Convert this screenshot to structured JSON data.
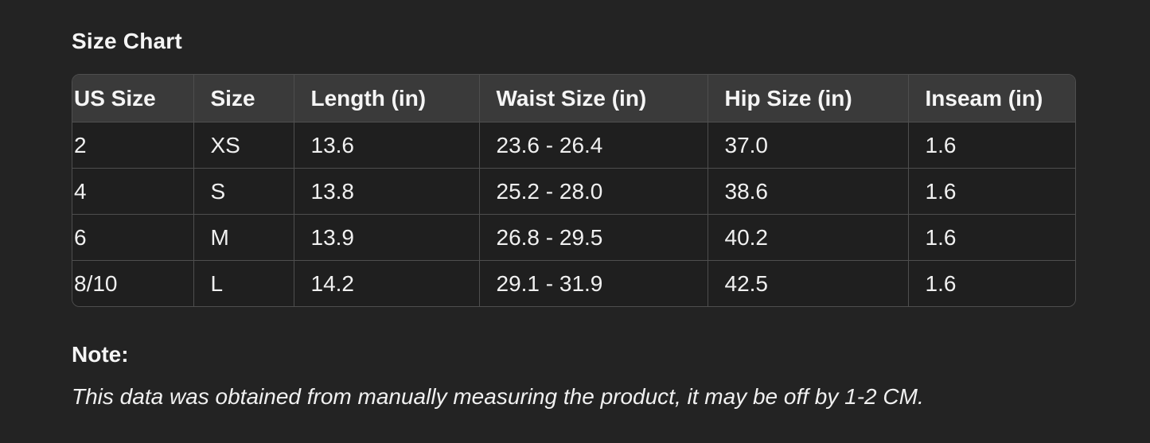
{
  "title": "Size Chart",
  "table": {
    "headers": [
      "US Size",
      "Size",
      "Length (in)",
      "Waist Size (in)",
      "Hip Size (in)",
      "Inseam (in)"
    ],
    "rows": [
      [
        "2",
        "XS",
        "13.6",
        "23.6 - 26.4",
        "37.0",
        "1.6"
      ],
      [
        "4",
        "S",
        "13.8",
        "25.2 - 28.0",
        "38.6",
        "1.6"
      ],
      [
        "6",
        "M",
        "13.9",
        "26.8 - 29.5",
        "40.2",
        "1.6"
      ],
      [
        "8/10",
        "L",
        "14.2",
        "29.1 - 31.9",
        "42.5",
        "1.6"
      ]
    ]
  },
  "note": {
    "label": "Note:",
    "text": "This data was obtained from manually measuring the product, it may be off by 1-2 CM."
  },
  "colors": {
    "page_background": "#232323",
    "header_row_background": "#3a3a3a",
    "cell_background": "#1f1f1f",
    "border": "#4e4e4e",
    "text": "#f5f5f5"
  }
}
